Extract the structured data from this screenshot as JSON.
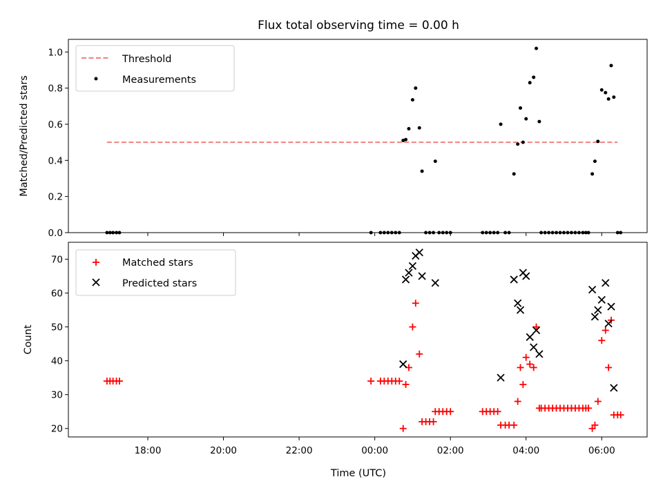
{
  "title": "Flux total observing time = 0.00 h",
  "chart_data": [
    {
      "type": "scatter",
      "ylabel": "Matched/Predicted stars",
      "xlabel": "",
      "ylim": [
        0,
        1.07
      ],
      "yticks": [
        0.0,
        0.2,
        0.4,
        0.6,
        0.8,
        1.0
      ],
      "ytick_labels": [
        "0.0",
        "0.2",
        "0.4",
        "0.6",
        "0.8",
        "1.0"
      ],
      "legend_position": "upper-left",
      "threshold": {
        "name": "Threshold",
        "value": 0.5,
        "x_start": -7.08,
        "x_end": 6.42,
        "color": "#f08080",
        "style": "dashed"
      },
      "series": [
        {
          "name": "Measurements",
          "marker": "dot",
          "color": "#000000",
          "x": [
            -7.08,
            -7.0,
            -6.92,
            -6.83,
            -6.75,
            -0.1,
            0.15,
            0.25,
            0.35,
            0.45,
            0.55,
            0.65,
            0.75,
            0.82,
            0.9,
            1.0,
            1.08,
            1.18,
            1.25,
            1.35,
            1.45,
            1.55,
            1.6,
            1.7,
            1.8,
            1.9,
            2.0,
            2.85,
            2.95,
            3.05,
            3.15,
            3.25,
            3.33,
            3.45,
            3.55,
            3.68,
            3.78,
            3.85,
            3.92,
            4.0,
            4.1,
            4.2,
            4.27,
            4.35,
            4.4,
            4.5,
            4.6,
            4.7,
            4.8,
            4.9,
            5.0,
            5.1,
            5.2,
            5.3,
            5.4,
            5.5,
            5.58,
            5.65,
            5.75,
            5.82,
            5.9,
            6.0,
            6.1,
            6.18,
            6.25,
            6.32,
            6.42,
            6.5
          ],
          "y": [
            0,
            0,
            0,
            0,
            0,
            0,
            0,
            0,
            0,
            0,
            0,
            0,
            0.51,
            0.515,
            0.575,
            0.735,
            0.8,
            0.58,
            0.34,
            0,
            0,
            0,
            0.395,
            0,
            0,
            0,
            0,
            0,
            0,
            0,
            0,
            0,
            0.6,
            0,
            0,
            0.325,
            0.49,
            0.69,
            0.5,
            0.63,
            0.83,
            0.86,
            1.02,
            0.615,
            0,
            0,
            0,
            0,
            0,
            0,
            0,
            0,
            0,
            0,
            0,
            0,
            0,
            0,
            0.325,
            0.395,
            0.505,
            0.79,
            0.775,
            0.74,
            0.925,
            0.75,
            0,
            0
          ]
        }
      ]
    },
    {
      "type": "scatter",
      "ylabel": "Count",
      "xlabel": "Time (UTC)",
      "ylim": [
        17.5,
        75
      ],
      "yticks": [
        20,
        30,
        40,
        50,
        60,
        70
      ],
      "ytick_labels": [
        "20",
        "30",
        "40",
        "50",
        "60",
        "70"
      ],
      "xlim": [
        -8.1,
        7.2
      ],
      "xticks": [
        -6,
        -4,
        -2,
        0,
        2,
        4,
        6
      ],
      "xtick_labels": [
        "18:00",
        "20:00",
        "22:00",
        "00:00",
        "02:00",
        "04:00",
        "06:00"
      ],
      "legend_position": "upper-left",
      "series": [
        {
          "name": "Matched stars",
          "marker": "plus",
          "color": "#ff0000",
          "x": [
            -7.08,
            -7.0,
            -6.92,
            -6.83,
            -6.75,
            -0.1,
            0.15,
            0.25,
            0.35,
            0.45,
            0.55,
            0.65,
            0.75,
            0.82,
            0.9,
            1.0,
            1.08,
            1.18,
            1.25,
            1.35,
            1.45,
            1.55,
            1.6,
            1.7,
            1.8,
            1.9,
            2.0,
            2.85,
            2.95,
            3.05,
            3.15,
            3.25,
            3.33,
            3.45,
            3.55,
            3.68,
            3.78,
            3.85,
            3.92,
            4.0,
            4.1,
            4.2,
            4.27,
            4.35,
            4.4,
            4.5,
            4.6,
            4.7,
            4.8,
            4.9,
            5.0,
            5.1,
            5.2,
            5.3,
            5.4,
            5.5,
            5.58,
            5.65,
            5.75,
            5.82,
            5.9,
            6.0,
            6.1,
            6.18,
            6.25,
            6.32,
            6.42,
            6.5
          ],
          "y": [
            34,
            34,
            34,
            34,
            34,
            34,
            34,
            34,
            34,
            34,
            34,
            34,
            20,
            33,
            38,
            50,
            57,
            42,
            22,
            22,
            22,
            22,
            25,
            25,
            25,
            25,
            25,
            25,
            25,
            25,
            25,
            25,
            21,
            21,
            21,
            21,
            28,
            38,
            33,
            41,
            39,
            38,
            50,
            26,
            26,
            26,
            26,
            26,
            26,
            26,
            26,
            26,
            26,
            26,
            26,
            26,
            26,
            26,
            20,
            21,
            28,
            46,
            49,
            38,
            52,
            24,
            24,
            24
          ]
        },
        {
          "name": "Predicted stars",
          "marker": "x",
          "color": "#000000",
          "x": [
            0.75,
            0.82,
            0.9,
            1.0,
            1.08,
            1.18,
            1.25,
            1.6,
            3.33,
            3.68,
            3.78,
            3.85,
            3.92,
            4.0,
            4.1,
            4.2,
            4.27,
            4.35,
            5.75,
            5.82,
            5.9,
            6.0,
            6.1,
            6.18,
            6.25,
            6.32
          ],
          "y": [
            39,
            64,
            66,
            68,
            71,
            72,
            65,
            63,
            35,
            64,
            57,
            55,
            66,
            65,
            47,
            44,
            49,
            42,
            61,
            53,
            55,
            58,
            63,
            51,
            56,
            32
          ]
        }
      ]
    }
  ]
}
